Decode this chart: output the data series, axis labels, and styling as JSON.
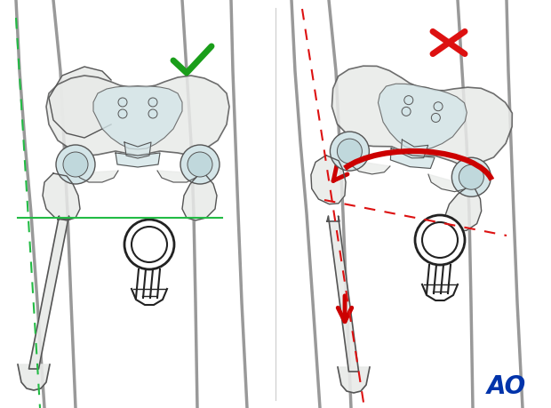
{
  "bg_color": "#ffffff",
  "fig_width": 6.2,
  "fig_height": 4.59,
  "dpi": 100,
  "green_check_color": "#1a9e1a",
  "red_x_color": "#dd1111",
  "red_arrow_color": "#cc0000",
  "green_line_color": "#22bb44",
  "red_dashed_color": "#dd1111",
  "leg_color": "#999999",
  "bone_fill": "#e8eae8",
  "bone_outline": "#555555",
  "pelvis_fill": "#d4e5e8",
  "sacrum_fill": "#c8dde0",
  "ao_color": "#0033aa",
  "post_fill": "#ffffff",
  "post_line": "#222222"
}
